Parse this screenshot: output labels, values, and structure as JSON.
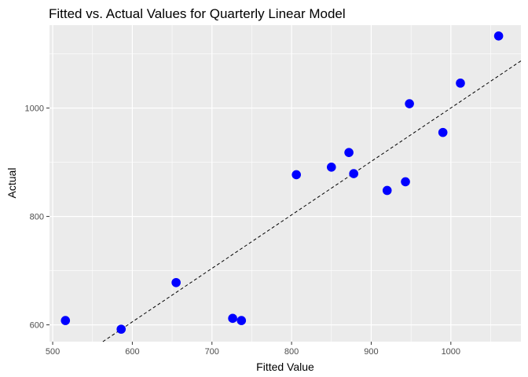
{
  "chart_data": {
    "type": "scatter",
    "title": "Fitted vs. Actual Values for Quarterly Linear Model",
    "xlabel": "Fitted Value",
    "ylabel": "Actual",
    "xlim": [
      496,
      1088
    ],
    "ylim": [
      569,
      1153
    ],
    "x_ticks": [
      500,
      600,
      700,
      800,
      900,
      1000
    ],
    "y_ticks": [
      600,
      800,
      1000
    ],
    "grid": true,
    "background": "#ebebeb",
    "grid_color": "#ffffff",
    "point_color": "#0000ff",
    "points": [
      {
        "x": 516,
        "y": 608
      },
      {
        "x": 586,
        "y": 592
      },
      {
        "x": 655,
        "y": 678
      },
      {
        "x": 726,
        "y": 612
      },
      {
        "x": 737,
        "y": 608
      },
      {
        "x": 806,
        "y": 877
      },
      {
        "x": 850,
        "y": 891
      },
      {
        "x": 872,
        "y": 918
      },
      {
        "x": 878,
        "y": 879
      },
      {
        "x": 920,
        "y": 848
      },
      {
        "x": 943,
        "y": 864
      },
      {
        "x": 948,
        "y": 1008
      },
      {
        "x": 990,
        "y": 955
      },
      {
        "x": 1012,
        "y": 1046
      },
      {
        "x": 1060,
        "y": 1133
      }
    ],
    "reference_line": {
      "style": "dashed",
      "color": "#000000",
      "x": [
        563,
        1088
      ],
      "y": [
        569,
        1087
      ]
    }
  }
}
